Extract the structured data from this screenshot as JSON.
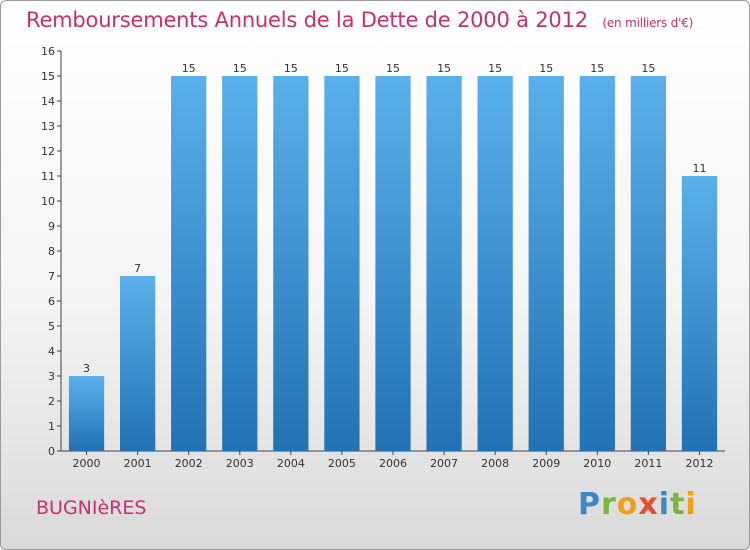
{
  "title": "Remboursements Annuels de la Dette de 2000 à 2012",
  "unit": "(en milliers d'€)",
  "commune": "BUGNIèRES",
  "brand": "Proxiti",
  "colors": {
    "title": "#c8306a",
    "bar_light": "#5ab0ea",
    "bar_dark": "#2272b4",
    "axis": "#444444"
  },
  "chart_data": {
    "type": "bar",
    "title": "Remboursements Annuels de la Dette de 2000 à 2012",
    "subtitle": "(en milliers d'€)",
    "categories": [
      "2000",
      "2001",
      "2002",
      "2003",
      "2004",
      "2005",
      "2006",
      "2007",
      "2008",
      "2009",
      "2010",
      "2011",
      "2012"
    ],
    "values": [
      3,
      7,
      15,
      15,
      15,
      15,
      15,
      15,
      15,
      15,
      15,
      15,
      11
    ],
    "ylim": [
      0,
      16
    ],
    "yticks": [
      0,
      1,
      2,
      3,
      4,
      5,
      6,
      7,
      8,
      9,
      10,
      11,
      12,
      13,
      14,
      15,
      16
    ],
    "grid": false,
    "legend": "none"
  }
}
